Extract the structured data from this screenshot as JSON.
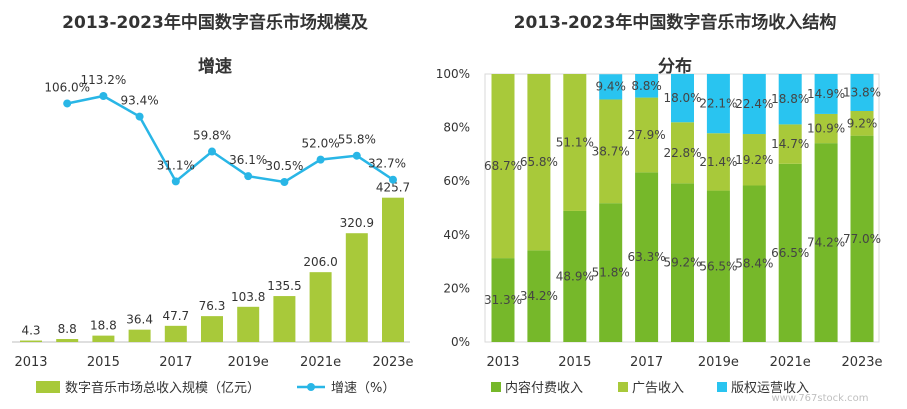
{
  "left_chart": {
    "title_line1": "2013-2023年中国数字音乐市场规模及",
    "title_line2": "增速",
    "legend_bar": "数字音乐市场总收入规模（亿元）",
    "legend_line": "增速（%）"
  },
  "right_chart": {
    "title_line1": "2013-2023年中国数字音乐市场收入结构",
    "title_line2": "分布",
    "legend": [
      "内容付费收入",
      "广告收入",
      "版权运营收入"
    ]
  },
  "watermark": "www.767stock.com",
  "colors": {
    "bar_green": "#a8c93a",
    "line_blue": "#29b6e6",
    "content_green": "#76b82a",
    "ad_green": "#a8c93a",
    "copyright_blue": "#29c4f0"
  },
  "chart_data": [
    {
      "type": "bar",
      "categories": [
        "2013",
        "2014",
        "2015",
        "2016",
        "2017",
        "2018",
        "2019e",
        "2020e",
        "2021e",
        "2022e",
        "2023e"
      ],
      "x_tick_labels": [
        "2013",
        "",
        "2015",
        "",
        "2017",
        "",
        "2019e",
        "",
        "2021e",
        "",
        "2023e"
      ],
      "series": [
        {
          "name": "数字音乐市场总收入规模（亿元）",
          "type": "bar",
          "values": [
            4.3,
            8.8,
            18.8,
            36.4,
            47.7,
            76.3,
            103.8,
            135.5,
            206.0,
            320.9,
            425.7
          ],
          "labels": [
            "4.3",
            "8.8",
            "18.8",
            "36.4",
            "47.7",
            "76.3",
            "103.8",
            "135.5",
            "206.0",
            "320.9",
            "425.7"
          ]
        },
        {
          "name": "增速（%）",
          "type": "line",
          "values": [
            null,
            106.0,
            113.2,
            93.4,
            31.1,
            59.8,
            36.1,
            30.5,
            52.0,
            55.8,
            32.7
          ],
          "labels": [
            "",
            "106.0%",
            "113.2%",
            "93.4%",
            "31.1%",
            "59.8%",
            "36.1%",
            "30.5%",
            "52.0%",
            "55.8%",
            "32.7%"
          ]
        }
      ],
      "legend_position": "bottom"
    },
    {
      "type": "bar",
      "stacked": "percent",
      "categories": [
        "2013",
        "2014",
        "2015",
        "2016",
        "2017",
        "2018",
        "2019e",
        "2020e",
        "2021e",
        "2022e",
        "2023e"
      ],
      "x_tick_labels": [
        "2013",
        "",
        "2015",
        "",
        "2017",
        "",
        "2019e",
        "",
        "2021e",
        "",
        "2023e"
      ],
      "y_ticks": [
        "0%",
        "20%",
        "40%",
        "60%",
        "80%",
        "100%"
      ],
      "ylim": [
        0,
        100
      ],
      "series": [
        {
          "name": "内容付费收入",
          "values": [
            31.3,
            34.2,
            48.9,
            51.8,
            63.3,
            59.2,
            56.5,
            58.4,
            66.5,
            74.2,
            77.0
          ],
          "labels": [
            "31.3%",
            "34.2%",
            "48.9%",
            "51.8%",
            "63.3%",
            "59.2%",
            "56.5%",
            "58.4%",
            "66.5%",
            "74.2%",
            "77.0%"
          ]
        },
        {
          "name": "广告收入",
          "values": [
            68.7,
            65.8,
            51.1,
            38.7,
            27.9,
            22.8,
            21.4,
            19.2,
            14.7,
            10.9,
            9.2
          ],
          "labels": [
            "68.7%",
            "65.8%",
            "51.1%",
            "38.7%",
            "27.9%",
            "22.8%",
            "21.4%",
            "19.2%",
            "14.7%",
            "10.9%",
            "9.2%"
          ]
        },
        {
          "name": "版权运营收入",
          "values": [
            0,
            0,
            0,
            9.4,
            8.8,
            18.0,
            22.1,
            22.4,
            18.8,
            14.9,
            13.8
          ],
          "labels": [
            "",
            "",
            "",
            "9.4%",
            "8.8%",
            "18.0%",
            "22.1%",
            "22.4%",
            "18.8%",
            "14.9%",
            "13.8%"
          ]
        }
      ],
      "legend_position": "bottom"
    }
  ]
}
